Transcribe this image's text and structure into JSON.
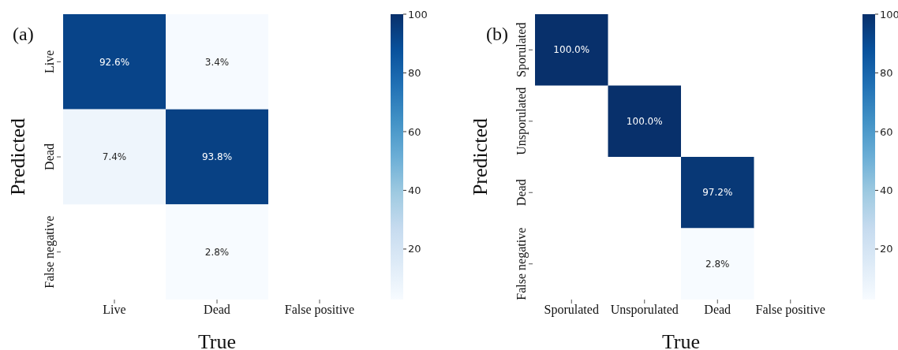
{
  "chart_data": [
    {
      "type": "heatmap",
      "title": "(a)",
      "xlabel": "True",
      "ylabel": "Predicted",
      "categories": [
        "Live",
        "Dead",
        "False positive"
      ],
      "y_categories": [
        "Live",
        "Dead",
        "False negative"
      ],
      "cells": [
        [
          92.6,
          3.4,
          null
        ],
        [
          7.4,
          93.8,
          null
        ],
        [
          null,
          2.8,
          null
        ]
      ],
      "cell_labels": [
        [
          "92.6%",
          "3.4%",
          null
        ],
        [
          "7.4%",
          "93.8%",
          null
        ],
        [
          null,
          "2.8%",
          null
        ]
      ],
      "clim": [
        2.8,
        100
      ],
      "cticks": [
        20,
        40,
        60,
        80,
        100
      ]
    },
    {
      "type": "heatmap",
      "title": "(b)",
      "xlabel": "True",
      "ylabel": "Predicted",
      "categories": [
        "Sporulated",
        "Unsporulated",
        "Dead",
        "False positive"
      ],
      "y_categories": [
        "Sporulated",
        "Unsporulated",
        "Dead",
        "False negative"
      ],
      "cells": [
        [
          100.0,
          null,
          null,
          null
        ],
        [
          null,
          100.0,
          null,
          null
        ],
        [
          null,
          null,
          97.2,
          null
        ],
        [
          null,
          null,
          2.8,
          null
        ]
      ],
      "cell_labels": [
        [
          "100.0%",
          null,
          null,
          null
        ],
        [
          null,
          "100.0%",
          null,
          null
        ],
        [
          null,
          null,
          "97.2%",
          null
        ],
        [
          null,
          null,
          "2.8%",
          null
        ]
      ],
      "clim": [
        2.8,
        100
      ],
      "cticks": [
        20,
        40,
        60,
        80,
        100
      ]
    }
  ]
}
